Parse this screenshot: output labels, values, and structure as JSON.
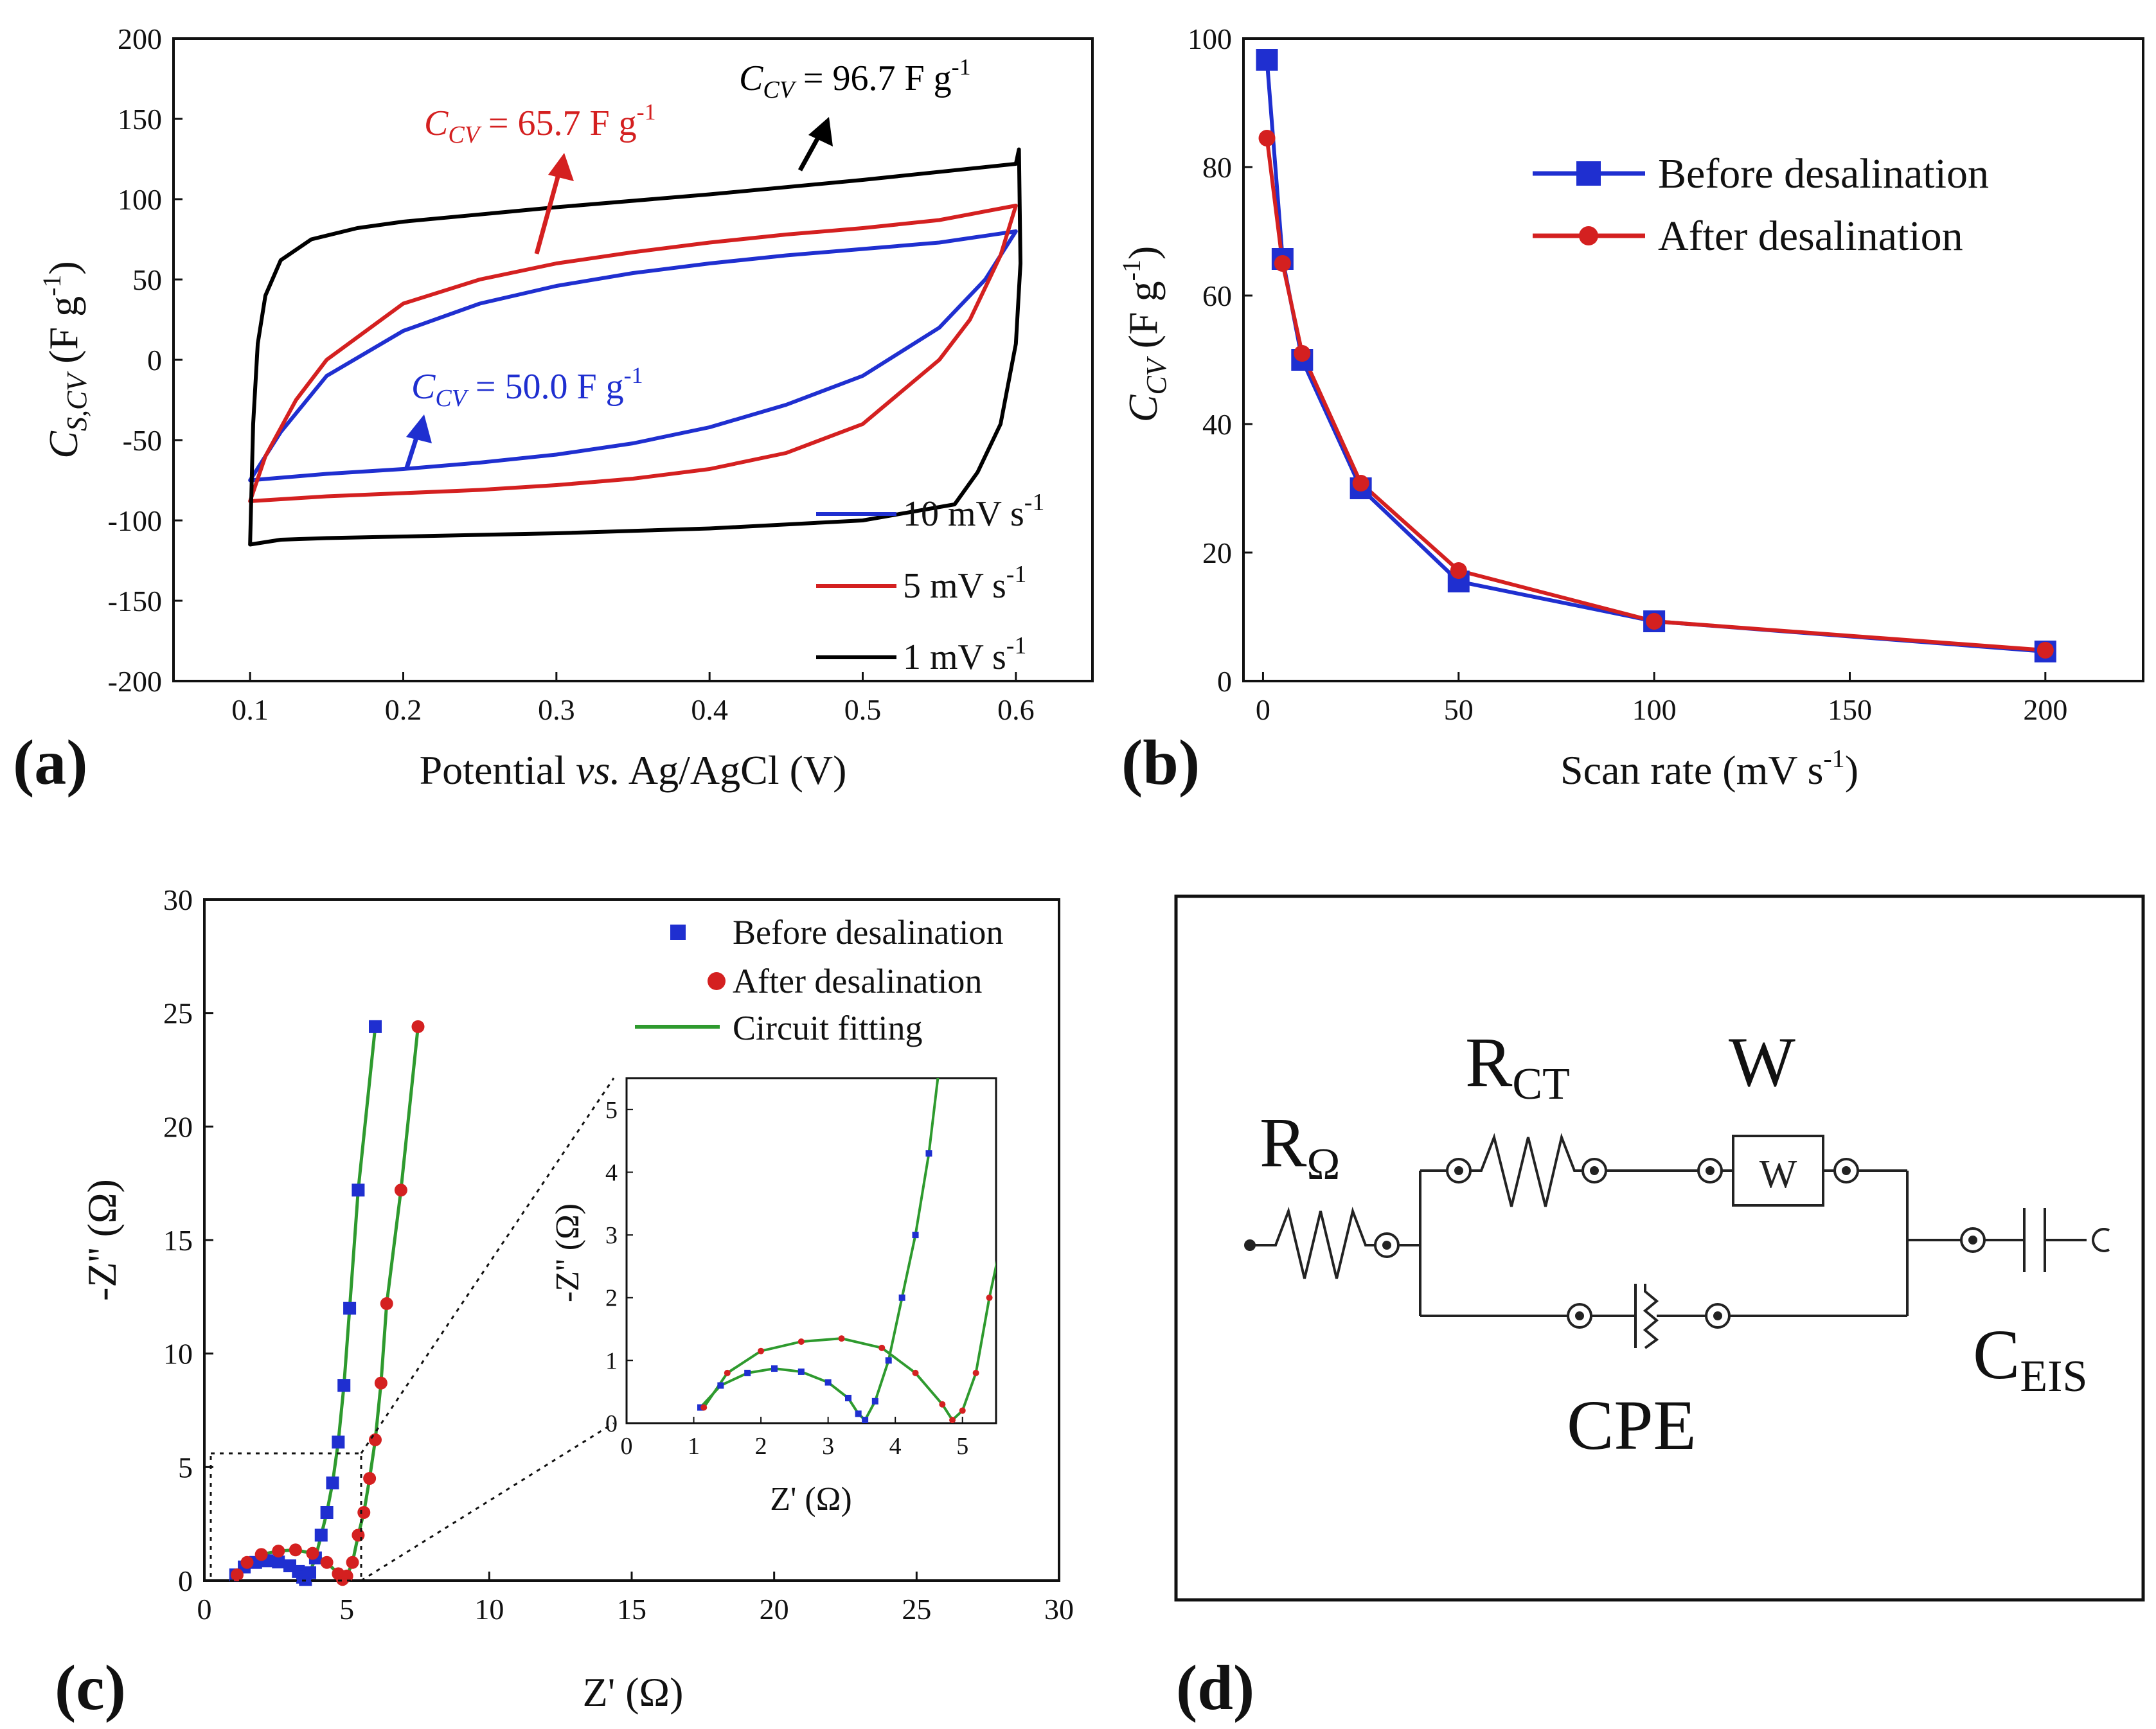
{
  "chart_data": [
    {
      "panel": "(a)",
      "type": "line",
      "xlabel": {
        "pre": "Potential ",
        "italic": "vs.",
        "post": " Ag/AgCl (V)"
      },
      "ylabel": {
        "base": "C",
        "sub": "S,CV",
        "unit": " (F g",
        "sup": "-1",
        "close": ")"
      },
      "xlim": [
        0.05,
        0.65
      ],
      "ylim": [
        -200,
        200
      ],
      "xticks": [
        "0.1",
        "0.2",
        "0.3",
        "0.4",
        "0.5",
        "0.6"
      ],
      "yticks": [
        "-200",
        "-150",
        "-100",
        "-50",
        "0",
        "50",
        "100",
        "150",
        "200"
      ],
      "series": [
        {
          "name": "10 mV s",
          "sup": "-1",
          "color": "#1f2fd0",
          "upper_x": [
            0.1,
            0.12,
            0.15,
            0.2,
            0.25,
            0.3,
            0.35,
            0.4,
            0.45,
            0.5,
            0.55,
            0.6
          ],
          "upper_y": [
            -75,
            -45,
            -10,
            18,
            35,
            46,
            54,
            60,
            65,
            69,
            73,
            80
          ],
          "lower_x": [
            0.6,
            0.58,
            0.55,
            0.5,
            0.45,
            0.4,
            0.35,
            0.3,
            0.25,
            0.2,
            0.15,
            0.1
          ],
          "lower_y": [
            80,
            50,
            20,
            -10,
            -28,
            -42,
            -52,
            -59,
            -64,
            -68,
            -71,
            -75
          ]
        },
        {
          "name": "5 mV s",
          "sup": "-1",
          "color": "#d42020",
          "upper_x": [
            0.1,
            0.11,
            0.13,
            0.15,
            0.2,
            0.25,
            0.3,
            0.35,
            0.4,
            0.45,
            0.5,
            0.55,
            0.6
          ],
          "upper_y": [
            -88,
            -60,
            -25,
            0,
            35,
            50,
            60,
            67,
            73,
            78,
            82,
            87,
            96
          ],
          "lower_x": [
            0.6,
            0.59,
            0.57,
            0.55,
            0.5,
            0.45,
            0.4,
            0.35,
            0.3,
            0.25,
            0.2,
            0.15,
            0.1
          ],
          "lower_y": [
            96,
            65,
            25,
            0,
            -40,
            -58,
            -68,
            -74,
            -78,
            -81,
            -83,
            -85,
            -88
          ]
        },
        {
          "name": "1 mV s",
          "sup": "-1",
          "color": "#000000",
          "upper_x": [
            0.1,
            0.102,
            0.105,
            0.11,
            0.12,
            0.14,
            0.17,
            0.2,
            0.3,
            0.4,
            0.5,
            0.6,
            0.602
          ],
          "upper_y": [
            -115,
            -40,
            10,
            40,
            62,
            75,
            82,
            86,
            95,
            103,
            112,
            122,
            131
          ],
          "lower_x": [
            0.602,
            0.603,
            0.6,
            0.59,
            0.575,
            0.56,
            0.5,
            0.4,
            0.3,
            0.2,
            0.15,
            0.12,
            0.1
          ],
          "lower_y": [
            131,
            60,
            10,
            -40,
            -70,
            -90,
            -100,
            -105,
            -108,
            -110,
            -111,
            -112,
            -115
          ]
        }
      ],
      "annotations": [
        {
          "text_base": "C",
          "text_sub": "CV",
          "text_rest": " = 96.7 F g",
          "text_sup": "-1",
          "color": "#000000"
        },
        {
          "text_base": "C",
          "text_sub": "CV",
          "text_rest": " = 65.7 F g",
          "text_sup": "-1",
          "color": "#d42020"
        },
        {
          "text_base": "C",
          "text_sub": "CV",
          "text_rest": " =  50.0  F g",
          "text_sup": "-1",
          "color": "#1f2fd0"
        }
      ]
    },
    {
      "panel": "(b)",
      "type": "line",
      "xlabel": {
        "pre": "Scan rate (mV s",
        "sup": "-1",
        "close": ")"
      },
      "ylabel": {
        "base": "C",
        "sub": "CV",
        "unit": " (F g",
        "sup": "-1",
        "close": ")"
      },
      "xlim": [
        -5,
        225
      ],
      "ylim": [
        0,
        100
      ],
      "xticks": [
        "0",
        "50",
        "100",
        "150",
        "200"
      ],
      "yticks": [
        "0",
        "20",
        "40",
        "60",
        "80",
        "100"
      ],
      "x": [
        1,
        5,
        10,
        25,
        50,
        100,
        200
      ],
      "series": [
        {
          "name": "Before desalination",
          "color": "#1f2fd0",
          "marker": "square",
          "values": [
            96.7,
            65.7,
            50.0,
            30.0,
            15.5,
            9.3,
            4.6
          ]
        },
        {
          "name": "After desalination",
          "color": "#d42020",
          "marker": "circle",
          "values": [
            84.5,
            65.0,
            51.0,
            30.8,
            17.2,
            9.3,
            4.8
          ]
        }
      ]
    },
    {
      "panel": "(c)",
      "type": "scatter",
      "xlabel": {
        "pre": "Z' (Ω)"
      },
      "ylabel": {
        "pre": "-Z'' (Ω)"
      },
      "xlim": [
        0,
        30
      ],
      "ylim": [
        0,
        30
      ],
      "xticks": [
        "0",
        "5",
        "10",
        "15",
        "20",
        "25",
        "30"
      ],
      "yticks": [
        "0",
        "5",
        "10",
        "15",
        "20",
        "25",
        "30"
      ],
      "series": [
        {
          "name": "Before desalination",
          "color": "#1f2fd0",
          "marker": "square",
          "x": [
            1.1,
            1.4,
            1.8,
            2.2,
            2.6,
            3.0,
            3.3,
            3.45,
            3.55,
            3.7,
            3.9,
            4.1,
            4.3,
            4.5,
            4.7,
            4.9,
            5.1,
            5.4,
            6.0
          ],
          "y": [
            0.25,
            0.6,
            0.8,
            0.87,
            0.82,
            0.65,
            0.4,
            0.15,
            0.05,
            0.35,
            1.0,
            2.0,
            3.0,
            4.3,
            6.1,
            8.6,
            12.0,
            17.2,
            24.4
          ]
        },
        {
          "name": "After desalination",
          "color": "#d42020",
          "marker": "circle",
          "x": [
            1.15,
            1.5,
            2.0,
            2.6,
            3.2,
            3.8,
            4.3,
            4.7,
            4.85,
            5.0,
            5.2,
            5.4,
            5.6,
            5.8,
            6.0,
            6.2,
            6.4,
            6.9,
            7.5
          ],
          "y": [
            0.25,
            0.8,
            1.15,
            1.3,
            1.35,
            1.2,
            0.8,
            0.3,
            0.05,
            0.2,
            0.8,
            2.0,
            3.0,
            4.5,
            6.2,
            8.7,
            12.2,
            17.2,
            24.4
          ]
        },
        {
          "name": "Circuit fitting",
          "color": "#2e9a2e",
          "marker": "line"
        }
      ],
      "inset": {
        "xlabel": "Z' (Ω)",
        "ylabel": "-Z'' (Ω)",
        "xlim": [
          0,
          5.5
        ],
        "ylim": [
          0,
          5.5
        ],
        "xticks": [
          "0",
          "1",
          "2",
          "3",
          "4",
          "5"
        ],
        "yticks": [
          "0",
          "1",
          "2",
          "3",
          "4",
          "5"
        ]
      }
    }
  ],
  "legend_a": [
    {
      "label": "10 mV s",
      "sup": "-1"
    },
    {
      "label": "5 mV s",
      "sup": "-1"
    },
    {
      "label": "1 mV s",
      "sup": "-1"
    }
  ],
  "circuit": {
    "panel": "(d)",
    "r_omega": {
      "base": "R",
      "sub": "Ω"
    },
    "r_ct": {
      "base": "R",
      "sub": "CT"
    },
    "w_label": "W",
    "w_box": "W",
    "cpe": "CPE",
    "c_eis": {
      "base": "C",
      "sub": "EIS"
    }
  }
}
